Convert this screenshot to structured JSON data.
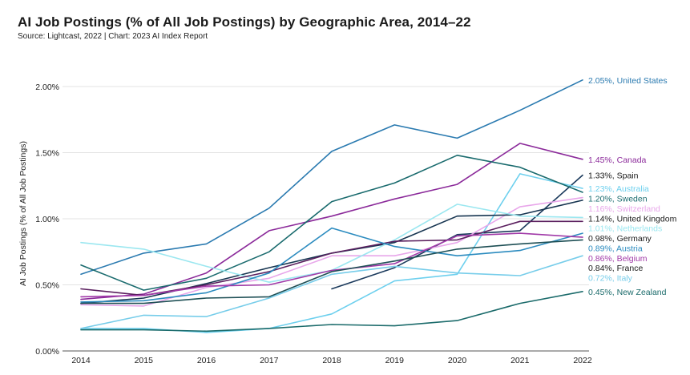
{
  "title": "AI Job Postings (% of All Job Postings) by Geographic Area, 2014–22",
  "subtitle": "Source: Lightcast, 2022 | Chart: 2023 AI Index Report",
  "chart_data": {
    "type": "line",
    "title": "AI Job Postings (% of All Job Postings) by Geographic Area, 2014–22",
    "ylabel": "AI Job Postings (% of All Job Postings)",
    "xlabel": "",
    "x": [
      2014,
      2015,
      2016,
      2017,
      2018,
      2019,
      2020,
      2021,
      2022
    ],
    "x_tick_labels": [
      "2014",
      "2015",
      "2016",
      "2017",
      "2018",
      "2019",
      "2020",
      "2021",
      "2022"
    ],
    "y_ticks": [
      0,
      0.5,
      1.0,
      1.5,
      2.0
    ],
    "y_tick_labels": [
      "0.00%",
      "0.50%",
      "1.00%",
      "1.50%",
      "2.00%"
    ],
    "ylim": [
      0,
      2.2
    ],
    "grid": "horizontal",
    "series": [
      {
        "name": "United States",
        "end_label": "2.05%, United States",
        "color": "#2a7ab0",
        "label_color": "#2a7ab0",
        "values": [
          0.58,
          0.74,
          0.81,
          1.08,
          1.51,
          1.71,
          1.61,
          1.82,
          2.05
        ]
      },
      {
        "name": "Canada",
        "end_label": "1.45%, Canada",
        "color": "#8b2a9a",
        "label_color": "#8b2a9a",
        "values": [
          0.39,
          0.43,
          0.59,
          0.91,
          1.02,
          1.15,
          1.26,
          1.57,
          1.45
        ]
      },
      {
        "name": "Spain",
        "end_label": "1.33%, Spain",
        "color": "#1b3a5c",
        "label_color": "#1a1a1a",
        "values": [
          null,
          null,
          null,
          null,
          0.47,
          0.63,
          0.88,
          0.91,
          1.33
        ]
      },
      {
        "name": "Australia",
        "end_label": "1.23%, Australia",
        "color": "#6ed0ee",
        "label_color": "#6ed0ee",
        "values": [
          0.17,
          0.17,
          0.14,
          0.17,
          0.28,
          0.53,
          0.58,
          1.34,
          1.23
        ]
      },
      {
        "name": "Sweden",
        "end_label": "1.20%, Sweden",
        "color": "#1a6b6e",
        "label_color": "#1a6b6e",
        "values": [
          0.65,
          0.46,
          0.55,
          0.75,
          1.13,
          1.27,
          1.48,
          1.39,
          1.2
        ]
      },
      {
        "name": "Switzerland",
        "end_label": "1.16%, Switzerland",
        "color": "#e8a6ea",
        "label_color": "#e8a6ea",
        "values": [
          0.35,
          0.34,
          0.48,
          0.55,
          0.72,
          0.72,
          0.82,
          1.09,
          1.16
        ]
      },
      {
        "name": "United Kingdom",
        "end_label": "1.14%, United Kingdom",
        "color": "#163450",
        "label_color": "#1a1a1a",
        "values": [
          0.36,
          0.4,
          0.51,
          0.63,
          0.74,
          0.82,
          1.02,
          1.03,
          1.14
        ]
      },
      {
        "name": "Netherlands",
        "end_label": "1.01%, Netherlands",
        "color": "#9be7f0",
        "label_color": "#9be7f0",
        "values": [
          0.82,
          0.77,
          0.64,
          0.52,
          0.61,
          0.84,
          1.11,
          1.02,
          1.01
        ]
      },
      {
        "name": "Germany",
        "end_label": "0.98%, Germany",
        "color": "#5a1e5e",
        "label_color": "#1a1a1a",
        "values": [
          0.47,
          0.42,
          0.5,
          0.6,
          0.74,
          0.83,
          0.84,
          0.98,
          0.98
        ]
      },
      {
        "name": "Austria",
        "end_label": "0.89%, Austria",
        "color": "#2b8bbf",
        "label_color": "#2b8bbf",
        "values": [
          0.37,
          0.38,
          0.44,
          0.59,
          0.93,
          0.79,
          0.72,
          0.76,
          0.89
        ]
      },
      {
        "name": "Belgium",
        "end_label": "0.86%, Belgium",
        "color": "#a13aa8",
        "label_color": "#a13aa8",
        "values": [
          0.41,
          0.42,
          0.49,
          0.5,
          0.61,
          0.66,
          0.87,
          0.89,
          0.86
        ]
      },
      {
        "name": "France",
        "end_label": "0.84%, France",
        "color": "#1e4f55",
        "label_color": "#1a1a1a",
        "values": [
          0.36,
          0.36,
          0.4,
          0.41,
          0.6,
          0.68,
          0.77,
          0.81,
          0.84
        ]
      },
      {
        "name": "Italy",
        "end_label": "0.72%, Italy",
        "color": "#77cdea",
        "label_color": "#77cdea",
        "values": [
          0.17,
          0.27,
          0.26,
          0.4,
          0.58,
          0.64,
          0.59,
          0.57,
          0.72
        ]
      },
      {
        "name": "New Zealand",
        "end_label": "0.45%, New Zealand",
        "color": "#1b6b6b",
        "label_color": "#1b6b6b",
        "values": [
          0.16,
          0.16,
          0.15,
          0.17,
          0.2,
          0.19,
          0.23,
          0.36,
          0.45
        ]
      }
    ]
  }
}
